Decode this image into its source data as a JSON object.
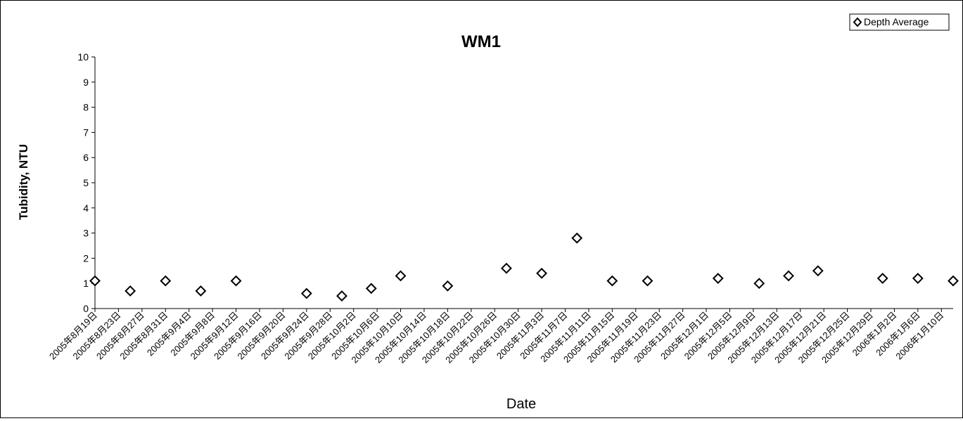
{
  "chart_data": {
    "type": "scatter",
    "title": "WM1",
    "xlabel": "Date",
    "ylabel": "Tubidity, NTU",
    "ylim": [
      0,
      10
    ],
    "yticks": [
      "0",
      "1",
      "2",
      "3",
      "4",
      "5",
      "6",
      "7",
      "8",
      "9",
      "10"
    ],
    "x_tick_labels": [
      "2005年8月19日",
      "2005年8月23日",
      "2005年8月27日",
      "2005年8月31日",
      "2005年9月4日",
      "2005年9月8日",
      "2005年9月12日",
      "2005年9月16日",
      "2005年9月20日",
      "2005年9月24日",
      "2005年9月28日",
      "2005年10月2日",
      "2005年10月6日",
      "2005年10月10日",
      "2005年10月14日",
      "2005年10月18日",
      "2005年10月22日",
      "2005年10月26日",
      "2005年10月30日",
      "2005年11月3日",
      "2005年11月7日",
      "2005年11月11日",
      "2005年11月15日",
      "2005年11月19日",
      "2005年11月23日",
      "2005年11月27日",
      "2005年12月1日",
      "2005年12月5日",
      "2005年12月9日",
      "2005年12月13日",
      "2005年12月17日",
      "2005年12月21日",
      "2005年12月25日",
      "2005年12月29日",
      "2006年1月2日",
      "2006年1月6日",
      "2006年1月10日"
    ],
    "xlim": [
      "2005-08-19",
      "2006-01-12"
    ],
    "legend": "top-right",
    "grid": false,
    "series": [
      {
        "name": "Depth Average",
        "marker": "open-diamond",
        "color": "#000000",
        "points": [
          {
            "x": "2005-08-19",
            "y": 1.1
          },
          {
            "x": "2005-08-25",
            "y": 0.7
          },
          {
            "x": "2005-08-31",
            "y": 1.1
          },
          {
            "x": "2005-09-06",
            "y": 0.7
          },
          {
            "x": "2005-09-12",
            "y": 1.1
          },
          {
            "x": "2005-09-24",
            "y": 0.6
          },
          {
            "x": "2005-09-30",
            "y": 0.5
          },
          {
            "x": "2005-10-05",
            "y": 0.8
          },
          {
            "x": "2005-10-10",
            "y": 1.3
          },
          {
            "x": "2005-10-18",
            "y": 0.9
          },
          {
            "x": "2005-10-28",
            "y": 1.6
          },
          {
            "x": "2005-11-03",
            "y": 1.4
          },
          {
            "x": "2005-11-09",
            "y": 2.8
          },
          {
            "x": "2005-11-15",
            "y": 1.1
          },
          {
            "x": "2005-11-21",
            "y": 1.1
          },
          {
            "x": "2005-12-03",
            "y": 1.2
          },
          {
            "x": "2005-12-10",
            "y": 1.0
          },
          {
            "x": "2005-12-15",
            "y": 1.3
          },
          {
            "x": "2005-12-20",
            "y": 1.5
          },
          {
            "x": "2005-12-31",
            "y": 1.2
          },
          {
            "x": "2006-01-06",
            "y": 1.2
          },
          {
            "x": "2006-01-12",
            "y": 1.1
          }
        ]
      }
    ]
  }
}
